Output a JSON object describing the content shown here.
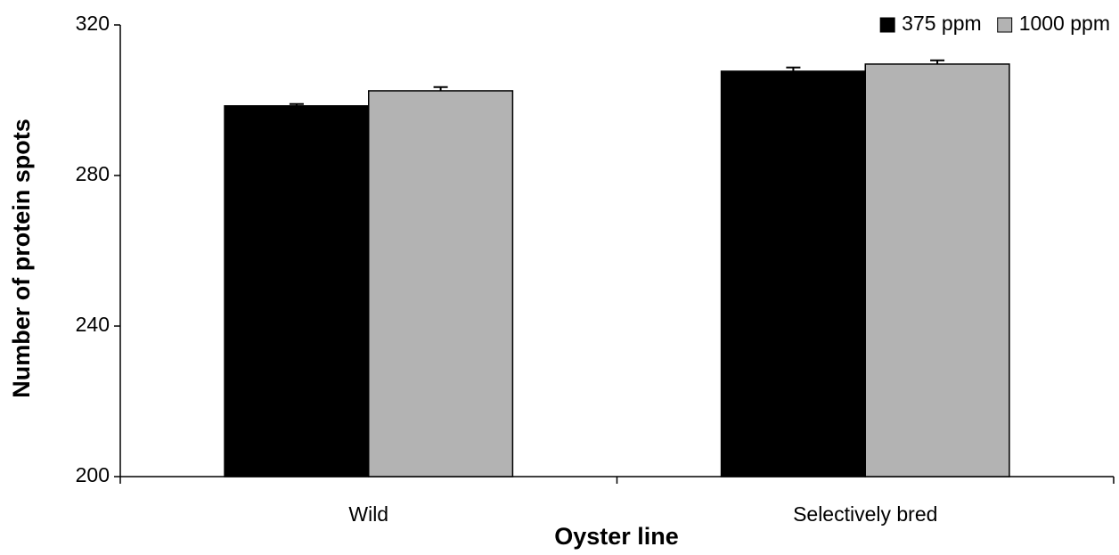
{
  "chart_data": {
    "type": "bar",
    "x_label": "Oyster line",
    "y_label": "Number of protein spots",
    "categories": [
      "Wild",
      "Selectively bred"
    ],
    "series": [
      {
        "name": "375 ppm",
        "color": "#000000",
        "values": [
          298.5,
          307.7
        ],
        "errors": [
          0.5,
          1
        ]
      },
      {
        "name": "1000 ppm",
        "color": "#b3b3b3",
        "values": [
          302.5,
          309.6
        ],
        "errors": [
          1,
          1
        ]
      }
    ],
    "ylim": [
      200,
      320
    ],
    "yticks": [
      200,
      240,
      280,
      320
    ],
    "grid": false,
    "legend": "top-right"
  }
}
